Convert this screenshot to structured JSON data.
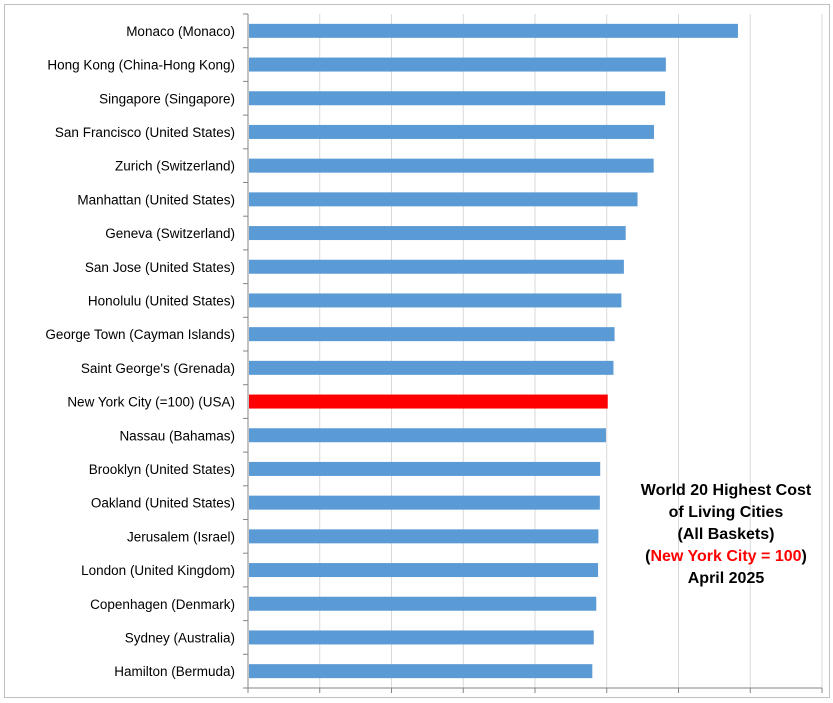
{
  "chart_data": {
    "type": "bar",
    "orientation": "horizontal",
    "categories": [
      "Monaco (Monaco)",
      "Hong Kong (China-Hong Kong)",
      "Singapore (Singapore)",
      "San Francisco (United States)",
      "Zurich (Switzerland)",
      "Manhattan (United States)",
      "Geneva (Switzerland)",
      "San Jose (United States)",
      "Honolulu (United States)",
      "George Town (Cayman Islands)",
      "Saint George's (Grenada)",
      "New York City (=100) (USA)",
      "Nassau (Bahamas)",
      "Brooklyn (United States)",
      "Oakland (United States)",
      "Jerusalem (Israel)",
      "London (United Kingdom)",
      "Copenhagen (Denmark)",
      "Sydney (Australia)",
      "Hamilton (Bermuda)"
    ],
    "values": [
      136.3,
      116.2,
      116.0,
      112.9,
      112.8,
      108.3,
      105.0,
      104.5,
      103.8,
      101.9,
      101.6,
      100,
      99.5,
      97.9,
      97.8,
      97.4,
      97.3,
      96.8,
      96.1,
      95.7
    ],
    "highlight_index": 11,
    "xlim": [
      0,
      160
    ],
    "grid": "vertical",
    "x_tick_labels_shown": false,
    "colors": {
      "bar": "#5b9bd5",
      "highlight": "#ff0000",
      "grid": "#d9d9d9",
      "axis": "#868686"
    },
    "title": {
      "line1": "World 20 Highest Cost",
      "line2": "of Living Cities",
      "line3": "(All Baskets)",
      "line4_open": "(",
      "line4_highlight": "New York City = 100",
      "line4_close": ")",
      "line5": "April 2025"
    },
    "title_placement": "lower-right"
  }
}
